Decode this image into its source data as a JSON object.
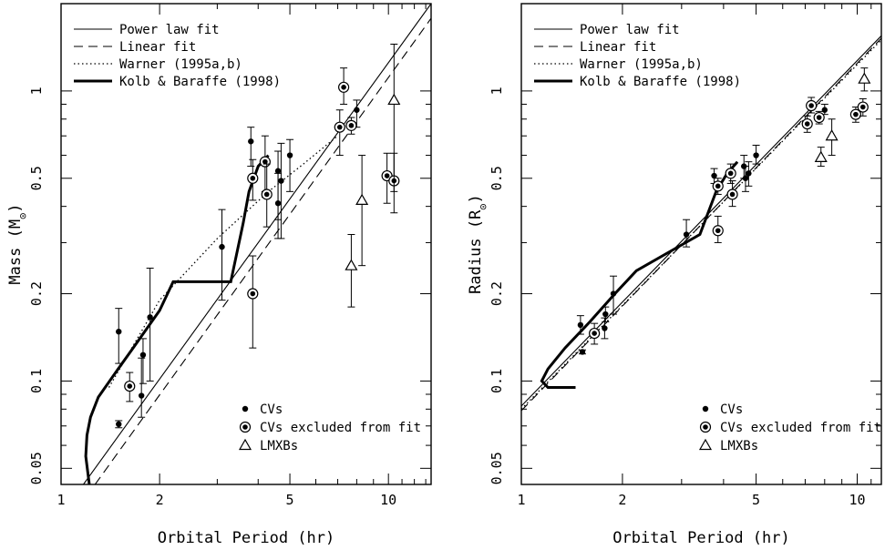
{
  "chart_data": [
    {
      "type": "scatter",
      "xlabel": "Orbital Period (hr)",
      "ylabel_prefix": "Mass (M",
      "ylabel_suffix": ")",
      "xscale": "log",
      "yscale": "log",
      "xlim": [
        1,
        13.5
      ],
      "ylim": [
        0.044,
        2.0
      ],
      "xticks": [
        {
          "v": 1,
          "label": "1"
        },
        {
          "v": 2,
          "label": "2"
        },
        {
          "v": 5,
          "label": "5"
        },
        {
          "v": 10,
          "label": "10"
        }
      ],
      "yticks": [
        {
          "v": 0.05,
          "label": "0.05"
        },
        {
          "v": 0.1,
          "label": "0.1"
        },
        {
          "v": 0.2,
          "label": "0.2"
        },
        {
          "v": 0.5,
          "label": "0.5"
        },
        {
          "v": 1,
          "label": "1"
        }
      ],
      "legend_lines": [
        "Power law fit",
        "Linear fit",
        "Warner (1995a,b)",
        "Kolb & Baraffe (1998)"
      ],
      "legend_markers": [
        "CVs",
        "CVs excluded from fit",
        "LMXBs"
      ],
      "power_law": [
        [
          1.17,
          0.044
        ],
        [
          13.5,
          2.0
        ]
      ],
      "linear_fit": [
        [
          1.27,
          0.044
        ],
        [
          13.5,
          1.78
        ]
      ],
      "warner": [
        [
          1.4,
          0.095
        ],
        [
          2,
          0.19
        ],
        [
          3,
          0.31
        ],
        [
          4.3,
          0.45
        ],
        [
          5.5,
          0.56
        ],
        [
          7,
          0.7
        ]
      ],
      "kolb_baraffe": [
        [
          1.22,
          0.044
        ],
        [
          1.19,
          0.055
        ],
        [
          1.2,
          0.065
        ],
        [
          1.23,
          0.075
        ],
        [
          1.3,
          0.088
        ],
        [
          1.45,
          0.105
        ],
        [
          1.7,
          0.135
        ],
        [
          2.0,
          0.175
        ],
        [
          2.2,
          0.22
        ],
        [
          3.3,
          0.22
        ],
        [
          3.6,
          0.35
        ],
        [
          3.75,
          0.45
        ],
        [
          4.0,
          0.55
        ],
        [
          4.3,
          0.6
        ]
      ],
      "cvs": [
        {
          "x": 1.5,
          "y": 0.148,
          "lo": 0.115,
          "hi": 0.178
        },
        {
          "x": 1.5,
          "y": 0.071,
          "lo": 0.069,
          "hi": 0.073
        },
        {
          "x": 1.76,
          "y": 0.089,
          "lo": 0.075,
          "hi": 0.12
        },
        {
          "x": 1.78,
          "y": 0.123,
          "lo": 0.098,
          "hi": 0.14
        },
        {
          "x": 1.87,
          "y": 0.166,
          "lo": 0.1,
          "hi": 0.245
        },
        {
          "x": 3.1,
          "y": 0.29,
          "lo": 0.19,
          "hi": 0.39
        },
        {
          "x": 3.8,
          "y": 0.67,
          "lo": 0.55,
          "hi": 0.75
        },
        {
          "x": 4.6,
          "y": 0.53,
          "lo": 0.36,
          "hi": 0.62
        },
        {
          "x": 4.6,
          "y": 0.41,
          "lo": 0.31,
          "hi": 0.52
        },
        {
          "x": 4.7,
          "y": 0.49,
          "lo": 0.31,
          "hi": 0.66
        },
        {
          "x": 5.0,
          "y": 0.6,
          "lo": 0.45,
          "hi": 0.68
        },
        {
          "x": 8.0,
          "y": 0.86,
          "lo": 0.75,
          "hi": 0.93
        }
      ],
      "cvs_excluded": [
        {
          "x": 1.62,
          "y": 0.096,
          "lo": 0.085,
          "hi": 0.107
        },
        {
          "x": 3.85,
          "y": 0.5,
          "lo": 0.42,
          "hi": 0.58
        },
        {
          "x": 3.85,
          "y": 0.2,
          "lo": 0.13,
          "hi": 0.27
        },
        {
          "x": 4.2,
          "y": 0.57,
          "lo": 0.45,
          "hi": 0.7
        },
        {
          "x": 4.25,
          "y": 0.44,
          "lo": 0.34,
          "hi": 0.56
        },
        {
          "x": 7.1,
          "y": 0.75,
          "lo": 0.6,
          "hi": 0.86
        },
        {
          "x": 7.3,
          "y": 1.03,
          "lo": 0.9,
          "hi": 1.2
        },
        {
          "x": 7.7,
          "y": 0.76,
          "lo": 0.71,
          "hi": 0.81
        },
        {
          "x": 9.9,
          "y": 0.51,
          "lo": 0.41,
          "hi": 0.61
        },
        {
          "x": 10.4,
          "y": 0.49,
          "lo": 0.38,
          "hi": 0.61
        }
      ],
      "lmxbs": [
        {
          "x": 7.7,
          "y": 0.25,
          "lo": 0.18,
          "hi": 0.32
        },
        {
          "x": 8.3,
          "y": 0.42,
          "lo": 0.25,
          "hi": 0.6
        },
        {
          "x": 10.4,
          "y": 0.93,
          "lo": 0.45,
          "hi": 1.45
        }
      ]
    },
    {
      "type": "scatter",
      "xlabel": "Orbital Period (hr)",
      "ylabel_prefix": "Radius (R",
      "ylabel_suffix": ")",
      "xscale": "log",
      "yscale": "log",
      "xlim": [
        1,
        11.8
      ],
      "ylim": [
        0.044,
        2.0
      ],
      "xticks": [
        {
          "v": 1,
          "label": "1"
        },
        {
          "v": 2,
          "label": "2"
        },
        {
          "v": 5,
          "label": "5"
        },
        {
          "v": 10,
          "label": "10"
        }
      ],
      "yticks": [
        {
          "v": 0.05,
          "label": "0.05"
        },
        {
          "v": 0.1,
          "label": "0.1"
        },
        {
          "v": 0.2,
          "label": "0.2"
        },
        {
          "v": 0.5,
          "label": "0.5"
        },
        {
          "v": 1,
          "label": "1"
        }
      ],
      "legend_lines": [
        "Power law fit",
        "Linear fit",
        "Warner (1995a,b)",
        "Kolb & Baraffe (1998)"
      ],
      "legend_markers": [
        "CVs",
        "CVs excluded from fit",
        "LMXBs"
      ],
      "power_law": [
        [
          1,
          0.082
        ],
        [
          11.8,
          1.55
        ]
      ],
      "linear_fit": [
        [
          1,
          0.079
        ],
        [
          11.8,
          1.52
        ]
      ],
      "warner": [
        [
          1,
          0.08
        ],
        [
          11.8,
          1.5
        ]
      ],
      "kolb_baraffe": [
        [
          1.45,
          0.095
        ],
        [
          1.2,
          0.095
        ],
        [
          1.15,
          0.1
        ],
        [
          1.2,
          0.11
        ],
        [
          1.35,
          0.13
        ],
        [
          1.6,
          0.16
        ],
        [
          1.9,
          0.2
        ],
        [
          2.2,
          0.24
        ],
        [
          3.4,
          0.32
        ],
        [
          3.8,
          0.45
        ],
        [
          4.1,
          0.52
        ],
        [
          4.4,
          0.57
        ]
      ],
      "cvs": [
        {
          "x": 1.5,
          "y": 0.156,
          "lo": 0.145,
          "hi": 0.168
        },
        {
          "x": 1.52,
          "y": 0.126,
          "lo": 0.124,
          "hi": 0.128
        },
        {
          "x": 1.77,
          "y": 0.152,
          "lo": 0.14,
          "hi": 0.165
        },
        {
          "x": 1.78,
          "y": 0.17,
          "lo": 0.16,
          "hi": 0.18
        },
        {
          "x": 1.88,
          "y": 0.2,
          "lo": 0.17,
          "hi": 0.23
        },
        {
          "x": 3.1,
          "y": 0.32,
          "lo": 0.29,
          "hi": 0.36
        },
        {
          "x": 3.75,
          "y": 0.51,
          "lo": 0.48,
          "hi": 0.54
        },
        {
          "x": 4.6,
          "y": 0.55,
          "lo": 0.5,
          "hi": 0.6
        },
        {
          "x": 4.65,
          "y": 0.5,
          "lo": 0.45,
          "hi": 0.55
        },
        {
          "x": 4.75,
          "y": 0.52,
          "lo": 0.47,
          "hi": 0.57
        },
        {
          "x": 5.0,
          "y": 0.6,
          "lo": 0.56,
          "hi": 0.65
        },
        {
          "x": 8.0,
          "y": 0.86,
          "lo": 0.83,
          "hi": 0.9
        }
      ],
      "cvs_excluded": [
        {
          "x": 1.65,
          "y": 0.146,
          "lo": 0.134,
          "hi": 0.158
        },
        {
          "x": 3.85,
          "y": 0.47,
          "lo": 0.44,
          "hi": 0.5
        },
        {
          "x": 3.85,
          "y": 0.33,
          "lo": 0.3,
          "hi": 0.37
        },
        {
          "x": 4.2,
          "y": 0.52,
          "lo": 0.48,
          "hi": 0.56
        },
        {
          "x": 4.25,
          "y": 0.44,
          "lo": 0.4,
          "hi": 0.49
        },
        {
          "x": 7.1,
          "y": 0.77,
          "lo": 0.72,
          "hi": 0.82
        },
        {
          "x": 7.3,
          "y": 0.89,
          "lo": 0.84,
          "hi": 0.95
        },
        {
          "x": 7.7,
          "y": 0.81,
          "lo": 0.77,
          "hi": 0.85
        },
        {
          "x": 9.9,
          "y": 0.83,
          "lo": 0.78,
          "hi": 0.88
        },
        {
          "x": 10.4,
          "y": 0.88,
          "lo": 0.82,
          "hi": 0.94
        }
      ],
      "lmxbs": [
        {
          "x": 7.8,
          "y": 0.59,
          "lo": 0.55,
          "hi": 0.64
        },
        {
          "x": 8.4,
          "y": 0.7,
          "lo": 0.6,
          "hi": 0.8
        },
        {
          "x": 10.5,
          "y": 1.1,
          "lo": 1.0,
          "hi": 1.2
        }
      ]
    }
  ]
}
